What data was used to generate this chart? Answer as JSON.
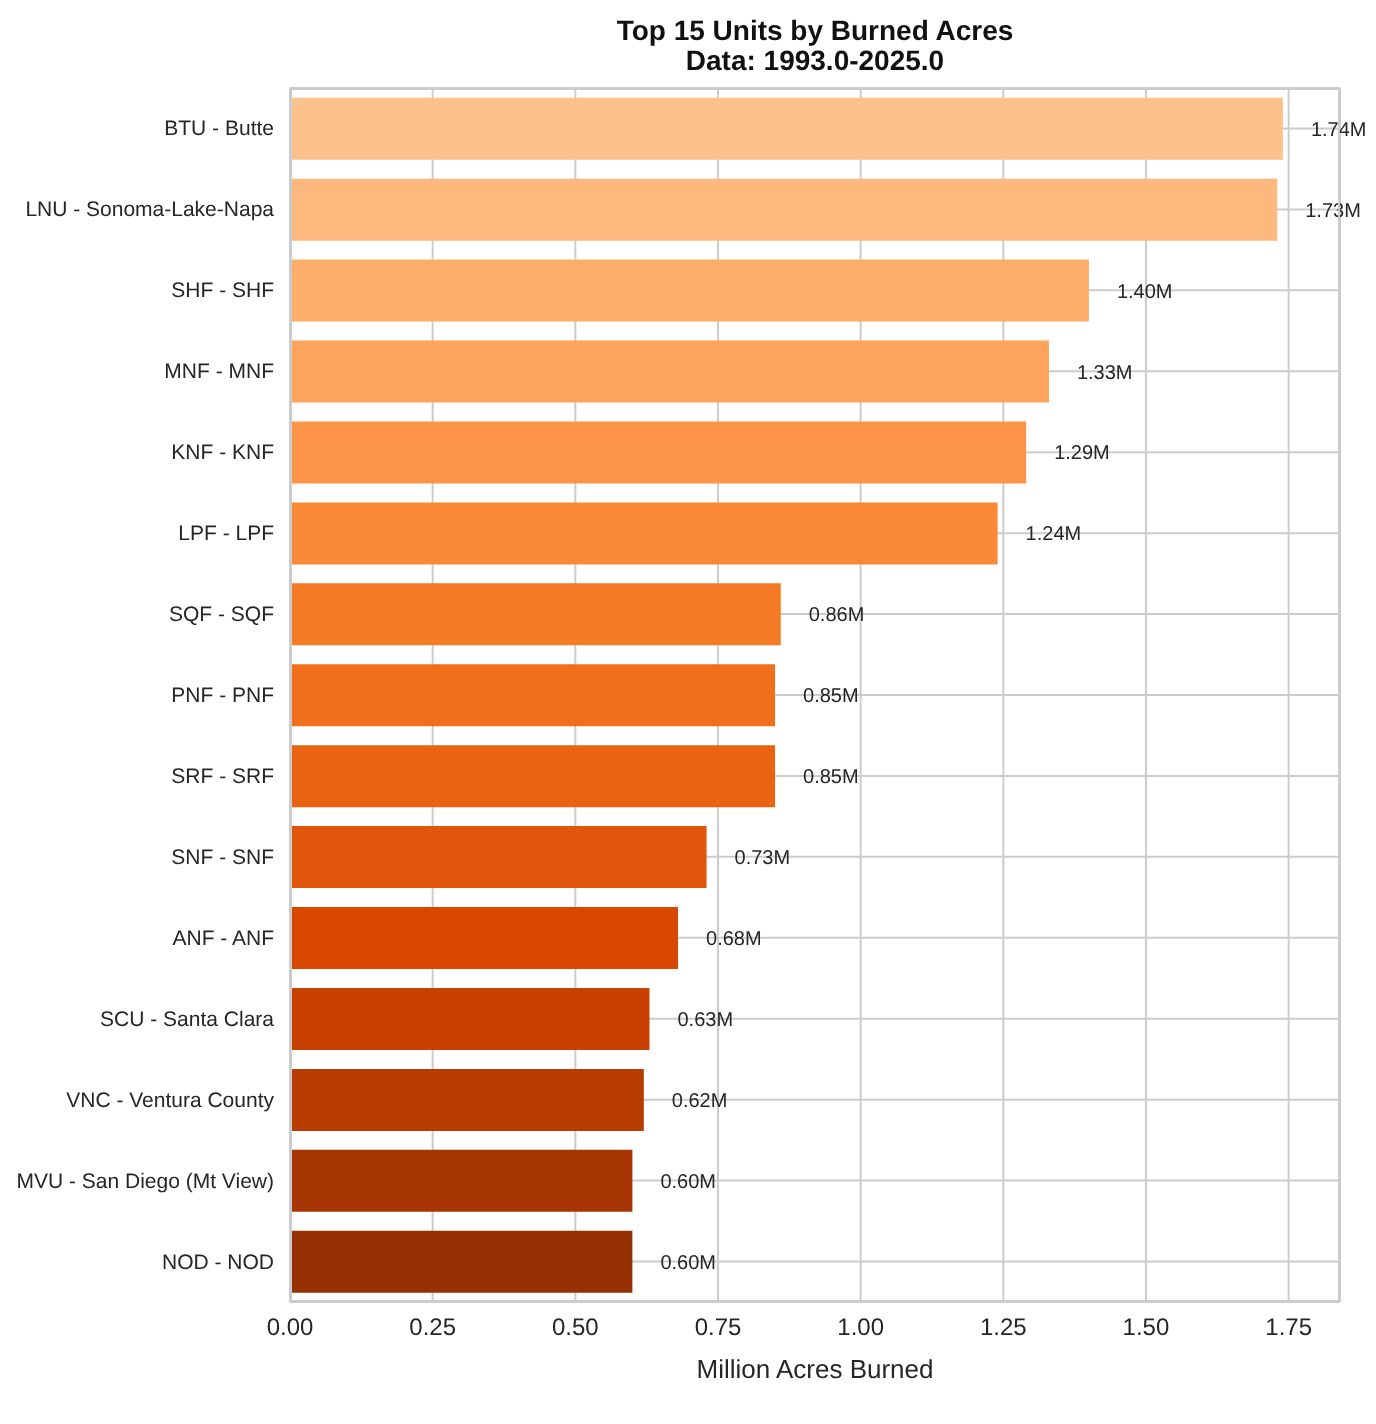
{
  "chart_data": {
    "type": "bar",
    "orientation": "horizontal",
    "title": "Top 15 Units by Burned Acres",
    "subtitle": "Data: 1993.0-2025.0",
    "xlabel": "Million Acres Burned",
    "categories": [
      "BTU - Butte",
      "LNU - Sonoma-Lake-Napa",
      "SHF - SHF",
      "MNF - MNF",
      "KNF - KNF",
      "LPF - LPF",
      "SQF - SQF",
      "PNF - PNF",
      "SRF - SRF",
      "SNF - SNF",
      "ANF - ANF",
      "SCU - Santa Clara",
      "VNC - Ventura County",
      "MVU - San Diego (Mt View)",
      "NOD - NOD"
    ],
    "values": [
      1.74,
      1.73,
      1.4,
      1.33,
      1.29,
      1.24,
      0.86,
      0.85,
      0.85,
      0.73,
      0.68,
      0.63,
      0.62,
      0.6,
      0.6
    ],
    "colors": [
      "#fdc28c",
      "#fdb97d",
      "#fdad6a",
      "#fda35c",
      "#fd9448",
      "#fb8836",
      "#f67b26",
      "#f16f1a",
      "#ea6310",
      "#e0550a",
      "#d94801",
      "#c84002",
      "#b73b02",
      "#a73403",
      "#973103"
    ],
    "value_labels": [
      "1.74M",
      "1.73M",
      "1.40M",
      "1.33M",
      "1.29M",
      "1.24M",
      "0.86M",
      "0.85M",
      "0.85M",
      "0.73M",
      "0.68M",
      "0.63M",
      "0.62M",
      "0.60M",
      "0.60M"
    ],
    "xlim": [
      0,
      1.84
    ],
    "xticks": [
      {
        "value": 0,
        "label": "0.00"
      },
      {
        "value": 0.25,
        "label": "0.25"
      },
      {
        "value": 0.5,
        "label": "0.50"
      },
      {
        "value": 0.75,
        "label": "0.75"
      },
      {
        "value": 1,
        "label": "1.00"
      },
      {
        "value": 1.25,
        "label": "1.25"
      },
      {
        "value": 1.5,
        "label": "1.50"
      },
      {
        "value": 1.75,
        "label": "1.75"
      }
    ],
    "grid": true
  }
}
